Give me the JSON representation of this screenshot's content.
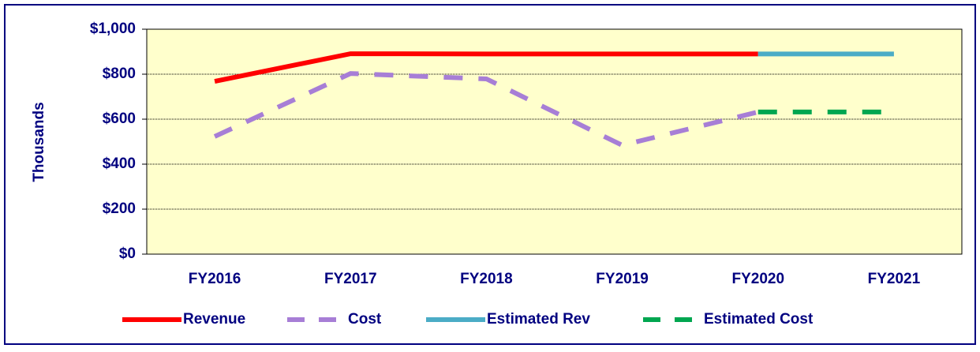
{
  "chart_data": {
    "type": "line",
    "ylabel": "Thousands",
    "categories": [
      "FY2016",
      "FY2017",
      "FY2018",
      "FY2019",
      "FY2020",
      "FY2021"
    ],
    "series": [
      {
        "name": "Revenue",
        "color": "#ff0000",
        "dashed": false,
        "values": [
          768,
          891,
          890,
          890,
          890,
          null
        ]
      },
      {
        "name": "Cost",
        "color": "#a77ed6",
        "dashed": true,
        "values": [
          523,
          803,
          779,
          484,
          632,
          null
        ]
      },
      {
        "name": "Estimated Rev",
        "color": "#4bacc6",
        "dashed": false,
        "values": [
          null,
          null,
          null,
          null,
          890,
          890
        ]
      },
      {
        "name": "Estimated Cost",
        "color": "#00a650",
        "dashed": true,
        "values": [
          null,
          null,
          null,
          null,
          632,
          632
        ]
      }
    ],
    "ylim": [
      0,
      1000
    ],
    "yticks": [
      {
        "value": 0,
        "label": "$0"
      },
      {
        "value": 200,
        "label": "$200"
      },
      {
        "value": 400,
        "label": "$400"
      },
      {
        "value": 600,
        "label": "$600"
      },
      {
        "value": 800,
        "label": "$800"
      },
      {
        "value": 1000,
        "label": "$1,000"
      }
    ],
    "grid": true,
    "legend": "bottom"
  }
}
